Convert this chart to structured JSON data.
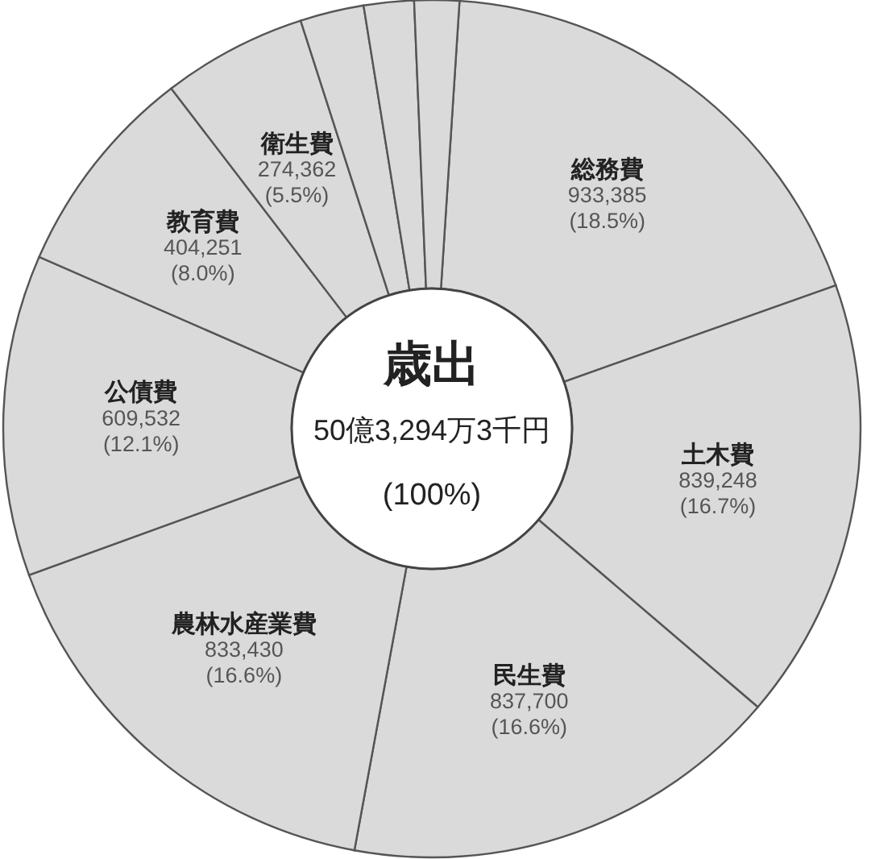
{
  "chart_data": {
    "type": "donut",
    "title": "歳出",
    "subtitle": "50億3,294万3千円",
    "annotations": [
      "(100%)"
    ],
    "categories": [
      "総務費",
      "土木費",
      "民生費",
      "農林水産業費",
      "公債費",
      "教育費",
      "衛生費",
      null,
      null,
      null
    ],
    "values": [
      933385,
      839248,
      837700,
      833430,
      609532,
      404251,
      274362,
      121000,
      95000,
      85000
    ],
    "value_labels": [
      "933,385\n(18.5%)",
      "839,248\n(16.7%)",
      "837,700\n(16.6%)",
      "833,430\n(16.6%)",
      "609,532\n(12.1%)",
      "404,251\n(8.0%)",
      "274,362\n(5.5%)",
      null,
      null,
      null
    ],
    "colors": [
      "#dadada",
      "#dadada",
      "#dadada",
      "#dadada",
      "#dadada",
      "#dadada",
      "#dadada",
      "#dadada",
      "#dadada",
      "#dadada"
    ]
  }
}
